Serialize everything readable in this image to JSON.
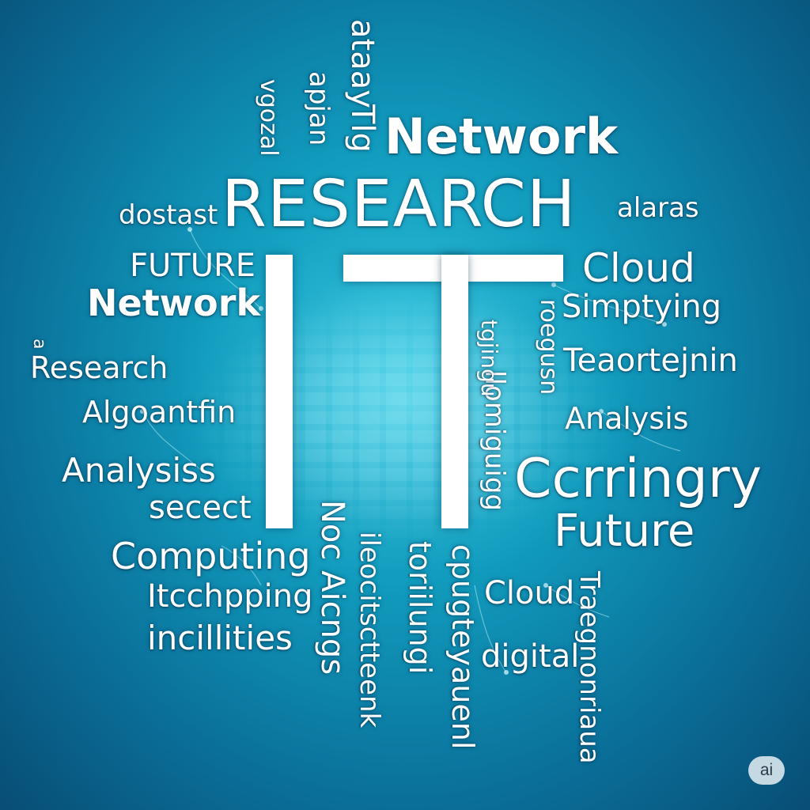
{
  "colors": {
    "background": "#119bbd",
    "text": "#ffffff"
  },
  "center": {
    "letters": "IT"
  },
  "words": {
    "network_top": "Network",
    "research_big": "RESEARCH",
    "dostast": "dostast",
    "alaras": "alaras",
    "future_caps": "FUTURE",
    "network_left": "Network",
    "cloud_right": "Cloud",
    "simptying": "Simptying",
    "research_left": "Research",
    "teaortejnin": "Teaortejnin",
    "algoantfin": "Algoantfin",
    "analysis_right": "Analysis",
    "analysiss": "Analysiss",
    "secect": "secect",
    "ccrringry": "Ccrringry",
    "future_right": "Future",
    "computing": "Computing",
    "itcchpping": "Itcchpping",
    "incillities": "incillities",
    "cloud_bottom": "Cloud",
    "digital": "digital",
    "v_ataay": "ataay",
    "v_tlg": "Tlg",
    "v_apjan": "apjan",
    "v_vgozal": "vgozal",
    "v_noc_aicngs": "Noc Aicngs",
    "v_ileoc": "ileocitsctteenk",
    "v_toriilungi": "toriilungi",
    "v_cpugteyauenl": "cpugteyauenl",
    "v_llomiguigg": "llomiguigg",
    "v_tgjingu": "tgjingu",
    "v_roegusn": "roegusn",
    "v_traegnonriaua": "Traegnonriaua",
    "v_a": "a"
  },
  "badge": "ai"
}
